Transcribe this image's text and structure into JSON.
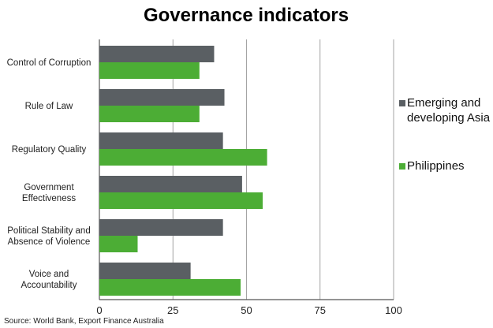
{
  "chart_data": {
    "type": "bar",
    "orientation": "horizontal",
    "title": "Governance indicators",
    "categories": [
      [
        "Control of Corruption"
      ],
      [
        "Rule of Law"
      ],
      [
        "Regulatory Quality"
      ],
      [
        "Government",
        "Effectiveness"
      ],
      [
        "Political Stability and",
        "Absence of Violence"
      ],
      [
        "Voice and",
        "Accountability"
      ]
    ],
    "series": [
      {
        "name": "Emerging and developing Asia",
        "legend_lines": [
          "Emerging and",
          "developing Asia"
        ],
        "color": "#5a5f63",
        "values": [
          39,
          42.5,
          42,
          48.5,
          42,
          31
        ]
      },
      {
        "name": "Philippines",
        "legend_lines": [
          "Philippines"
        ],
        "color": "#4cad35",
        "values": [
          34,
          34,
          57,
          55.5,
          13,
          48
        ]
      }
    ],
    "xlim": [
      0,
      100
    ],
    "xticks": [
      "0",
      "25",
      "50",
      "75",
      "100"
    ],
    "grid": true,
    "legend_position": "right",
    "source": "Source: World Bank, Export Finance Australia"
  }
}
